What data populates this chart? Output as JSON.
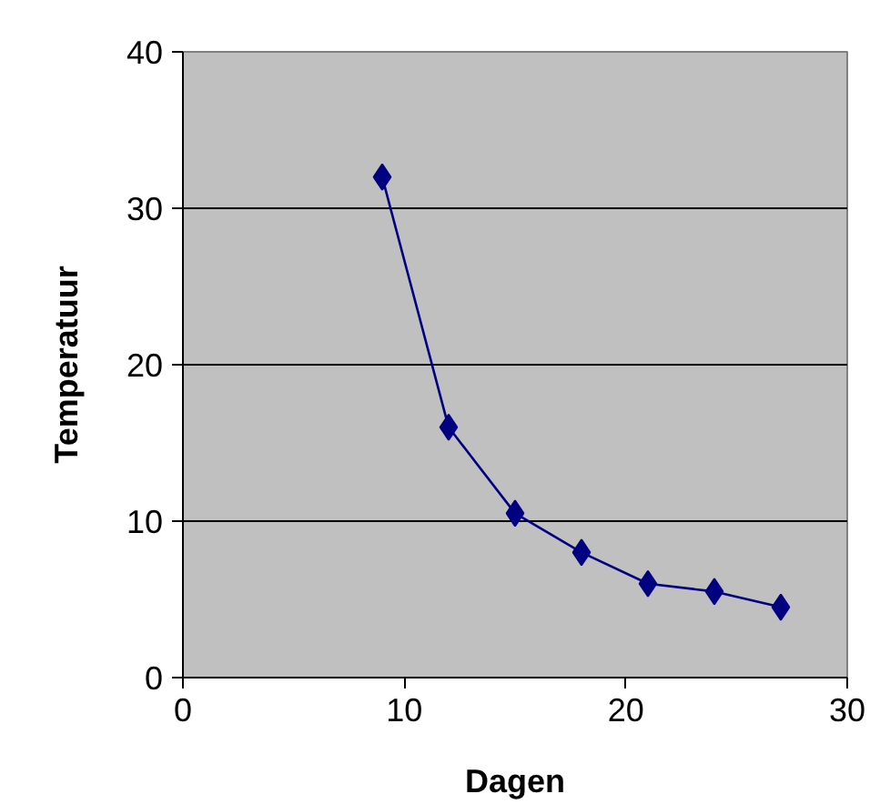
{
  "chart_data": {
    "type": "line",
    "xlabel": "Dagen",
    "ylabel": "Temperatuur",
    "x": [
      9,
      12,
      15,
      18,
      21,
      24,
      27
    ],
    "series": [
      {
        "color": "#000080",
        "values": [
          32,
          16,
          10.5,
          8,
          6,
          5.5,
          4.5
        ]
      }
    ],
    "xlim": [
      0,
      30
    ],
    "xticks": [
      0,
      10,
      20,
      30
    ],
    "ylim": [
      0,
      40
    ],
    "yticks": [
      0,
      10,
      20,
      30,
      40
    ],
    "grid": "y",
    "marker": "diamond",
    "line_style": "solid"
  }
}
